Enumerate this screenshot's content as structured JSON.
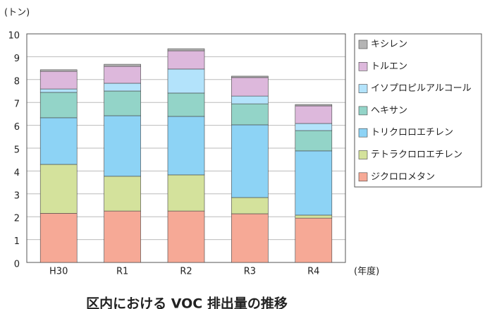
{
  "chart_data": {
    "type": "stacked_bar",
    "title": "区内における VOC 排出量の推移",
    "y_label": "(トン)",
    "x_label": "(年度)",
    "categories": [
      "H30",
      "R1",
      "R2",
      "R3",
      "R4"
    ],
    "series": [
      {
        "name": "ジクロロメタン",
        "color": "#f6a996",
        "values": [
          2.15,
          2.25,
          2.25,
          2.13,
          1.94
        ]
      },
      {
        "name": "テトラクロロエチレン",
        "color": "#d4e29c",
        "values": [
          2.14,
          1.52,
          1.58,
          0.71,
          0.13
        ]
      },
      {
        "name": "トリクロロエチレン",
        "color": "#8dd3f5",
        "values": [
          2.04,
          2.65,
          2.56,
          3.18,
          2.81
        ]
      },
      {
        "name": "ヘキサン",
        "color": "#93d4c8",
        "values": [
          1.11,
          1.08,
          1.02,
          0.92,
          0.89
        ]
      },
      {
        "name": "イソプロピルアルコール",
        "color": "#b3e3fb",
        "values": [
          0.15,
          0.34,
          1.05,
          0.34,
          0.31
        ]
      },
      {
        "name": "トルエン",
        "color": "#ddb8dc",
        "values": [
          0.77,
          0.74,
          0.8,
          0.81,
          0.77
        ]
      },
      {
        "name": "キシレン",
        "color": "#b4b4b4",
        "values": [
          0.07,
          0.09,
          0.09,
          0.06,
          0.06
        ]
      }
    ],
    "ylim": [
      0,
      10
    ],
    "yticks": [
      0,
      1,
      2,
      3,
      4,
      5,
      6,
      7,
      8,
      9,
      10
    ],
    "grid": true
  }
}
